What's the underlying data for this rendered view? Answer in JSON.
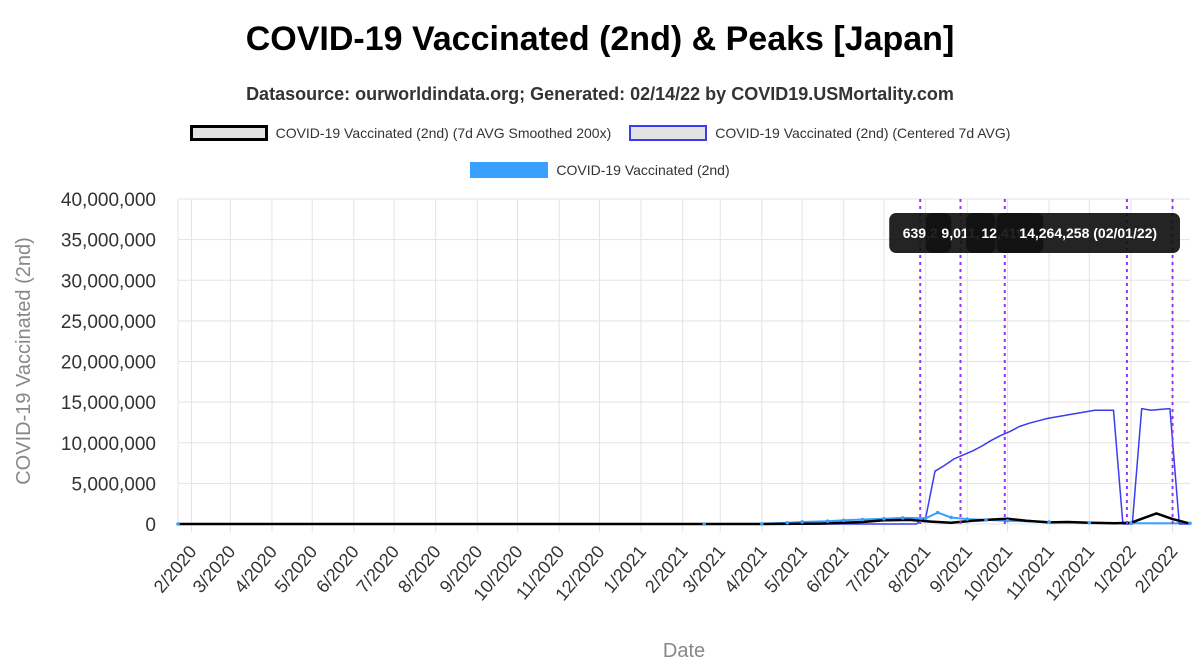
{
  "title": "COVID-19 Vaccinated (2nd) & Peaks [Japan]",
  "subtitle": "Datasource: ourworldindata.org; Generated: 02/14/22 by COVID19.USMortality.com",
  "colors": {
    "smoothed": "#000000",
    "centered": "#3b3bf0",
    "raw": "#3aa0ff",
    "peak_line": "#9b30ff",
    "tooltip_bg": "#111111"
  },
  "chart_data": {
    "type": "line",
    "xlabel": "Date",
    "ylabel": "COVID-19 Vaccinated (2nd)",
    "ylim": [
      0,
      40000000
    ],
    "y_ticks": [
      "0",
      "5,000,000",
      "10,000,000",
      "15,000,000",
      "20,000,000",
      "25,000,000",
      "30,000,000",
      "35,000,000",
      "40,000,000"
    ],
    "y_tick_values": [
      0,
      5000000,
      10000000,
      15000000,
      20000000,
      25000000,
      30000000,
      35000000,
      40000000
    ],
    "x_range": [
      "2020-01-22",
      "2022-02-14"
    ],
    "x_ticks": [
      "2/2020",
      "3/2020",
      "4/2020",
      "5/2020",
      "6/2020",
      "7/2020",
      "8/2020",
      "9/2020",
      "10/2020",
      "11/2020",
      "12/2020",
      "1/2021",
      "2/2021",
      "3/2021",
      "4/2021",
      "5/2021",
      "6/2021",
      "7/2021",
      "8/2021",
      "9/2021",
      "10/2021",
      "11/2021",
      "12/2021",
      "1/2022",
      "2/2022"
    ],
    "x_tick_dates": [
      "2020-02-01",
      "2020-03-01",
      "2020-04-01",
      "2020-05-01",
      "2020-06-01",
      "2020-07-01",
      "2020-08-01",
      "2020-09-01",
      "2020-10-01",
      "2020-11-01",
      "2020-12-01",
      "2021-01-01",
      "2021-02-01",
      "2021-03-01",
      "2021-04-01",
      "2021-05-01",
      "2021-06-01",
      "2021-07-01",
      "2021-08-01",
      "2021-09-01",
      "2021-10-01",
      "2021-11-01",
      "2021-12-01",
      "2022-01-01",
      "2022-02-01"
    ],
    "grid": true,
    "legend": "top",
    "series": [
      {
        "name": "COVID-19 Vaccinated (2nd) (7d AVG Smoothed 200x)",
        "x": [
          "2020-01-22",
          "2021-04-01",
          "2021-05-15",
          "2021-06-15",
          "2021-07-01",
          "2021-07-20",
          "2021-08-05",
          "2021-08-20",
          "2021-09-05",
          "2021-09-20",
          "2021-10-01",
          "2021-10-15",
          "2021-11-01",
          "2021-11-15",
          "2021-12-01",
          "2021-12-20",
          "2022-01-01",
          "2022-01-10",
          "2022-01-20",
          "2022-02-01",
          "2022-02-14"
        ],
        "values": [
          0,
          0,
          50000,
          250000,
          450000,
          500000,
          300000,
          150000,
          400000,
          550000,
          650000,
          400000,
          200000,
          250000,
          150000,
          100000,
          150000,
          700000,
          1300000,
          600000,
          50000
        ]
      },
      {
        "name": "COVID-19 Vaccinated (2nd) (Centered 7d AVG)",
        "x": [
          "2020-01-22",
          "2021-07-25",
          "2021-08-01",
          "2021-08-08",
          "2021-08-15",
          "2021-08-22",
          "2021-08-29",
          "2021-09-05",
          "2021-09-12",
          "2021-09-19",
          "2021-09-26",
          "2021-10-03",
          "2021-10-10",
          "2021-10-17",
          "2021-10-24",
          "2021-10-31",
          "2021-11-07",
          "2021-11-14",
          "2021-11-21",
          "2021-11-28",
          "2021-12-05",
          "2021-12-12",
          "2021-12-19",
          "2021-12-26",
          "2022-01-02",
          "2022-01-09",
          "2022-01-16",
          "2022-01-23",
          "2022-01-30",
          "2022-02-06",
          "2022-02-14"
        ],
        "values": [
          0,
          0,
          700000,
          6500000,
          7200000,
          8000000,
          8500000,
          9000000,
          9600000,
          10300000,
          10900000,
          11400000,
          12000000,
          12400000,
          12700000,
          13000000,
          13200000,
          13400000,
          13600000,
          13800000,
          14000000,
          14000000,
          14000000,
          0,
          0,
          14200000,
          14000000,
          14100000,
          14200000,
          0,
          0
        ]
      },
      {
        "name": "COVID-19 Vaccinated (2nd)",
        "x": [
          "2020-01-22",
          "2021-02-17",
          "2021-04-01",
          "2021-04-20",
          "2021-05-01",
          "2021-05-20",
          "2021-06-01",
          "2021-06-15",
          "2021-07-01",
          "2021-07-15",
          "2021-08-01",
          "2021-08-10",
          "2021-08-20",
          "2021-09-01",
          "2021-09-15",
          "2021-10-01",
          "2021-11-01",
          "2021-12-01",
          "2022-01-01",
          "2022-02-14"
        ],
        "values": [
          0,
          0,
          30000,
          150000,
          250000,
          350000,
          450000,
          550000,
          650000,
          750000,
          700000,
          1400000,
          800000,
          600000,
          500000,
          400000,
          250000,
          150000,
          100000,
          80000
        ]
      }
    ],
    "peaks": [
      {
        "label": "639,2",
        "date": "2021-07-28"
      },
      {
        "label": "9,011,",
        "date": "2021-08-27"
      },
      {
        "label": "12,419,",
        "date": "2021-09-29"
      },
      {
        "label": "14,264,258 (02/01/22)",
        "date": "2021-12-29"
      },
      {
        "label": "",
        "date": "2022-02-01"
      }
    ]
  }
}
